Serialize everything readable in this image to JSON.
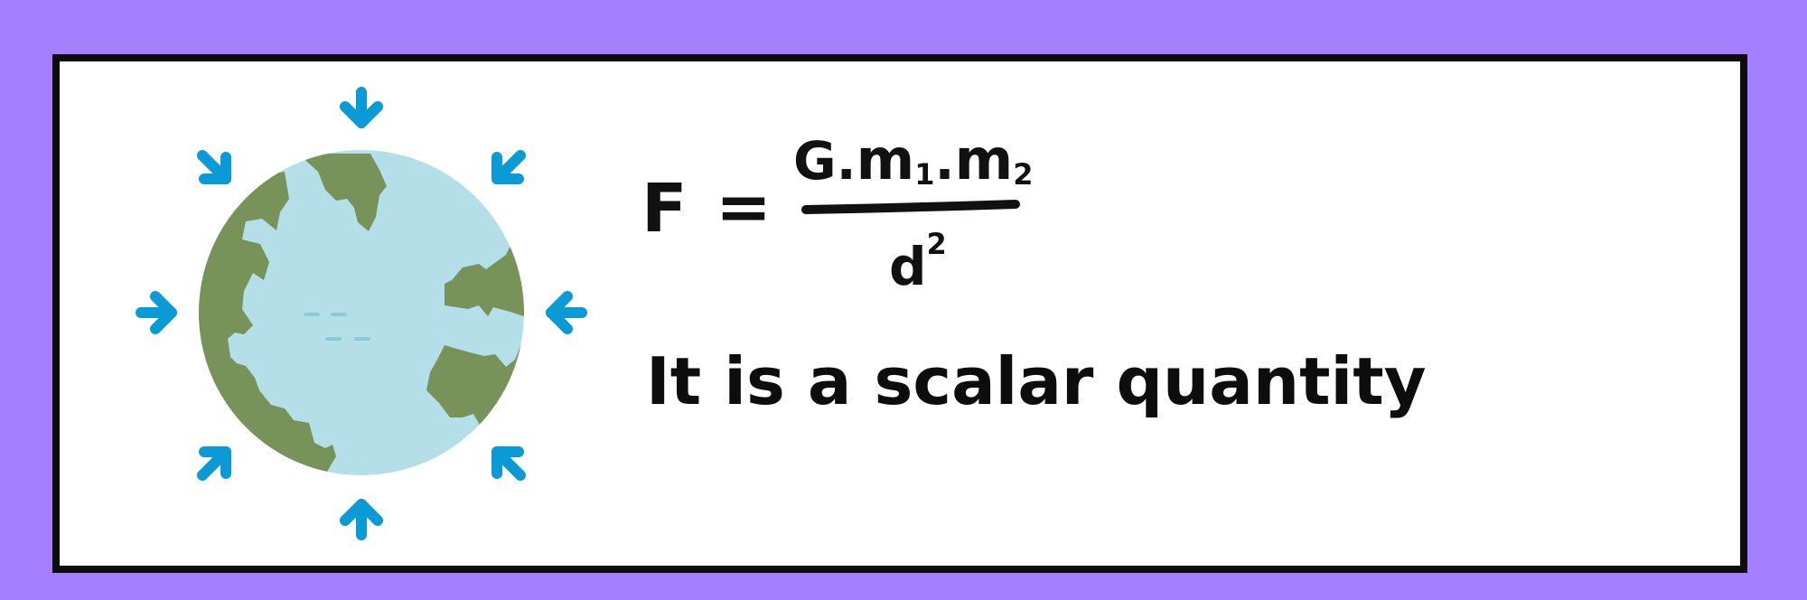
{
  "colors": {
    "background": "#a47fff",
    "card": "#ffffff",
    "border": "#0d0d0d",
    "ocean": "#b4dfe9",
    "land": "#77935a",
    "arrow": "#0a9ad6"
  },
  "illustration": {
    "icon": "earth-globe-icon",
    "arrows_icon": "inward-arrow-icon"
  },
  "formula": {
    "lhs": "F",
    "equals": "=",
    "numerator": {
      "G": "G",
      "dot1": ".",
      "m1": "m",
      "sub1": "1",
      "dot2": ".",
      "m2": "m",
      "sub2": "2"
    },
    "denominator": {
      "d": "d",
      "exp": "2"
    }
  },
  "statement": "It is a scalar quantity"
}
